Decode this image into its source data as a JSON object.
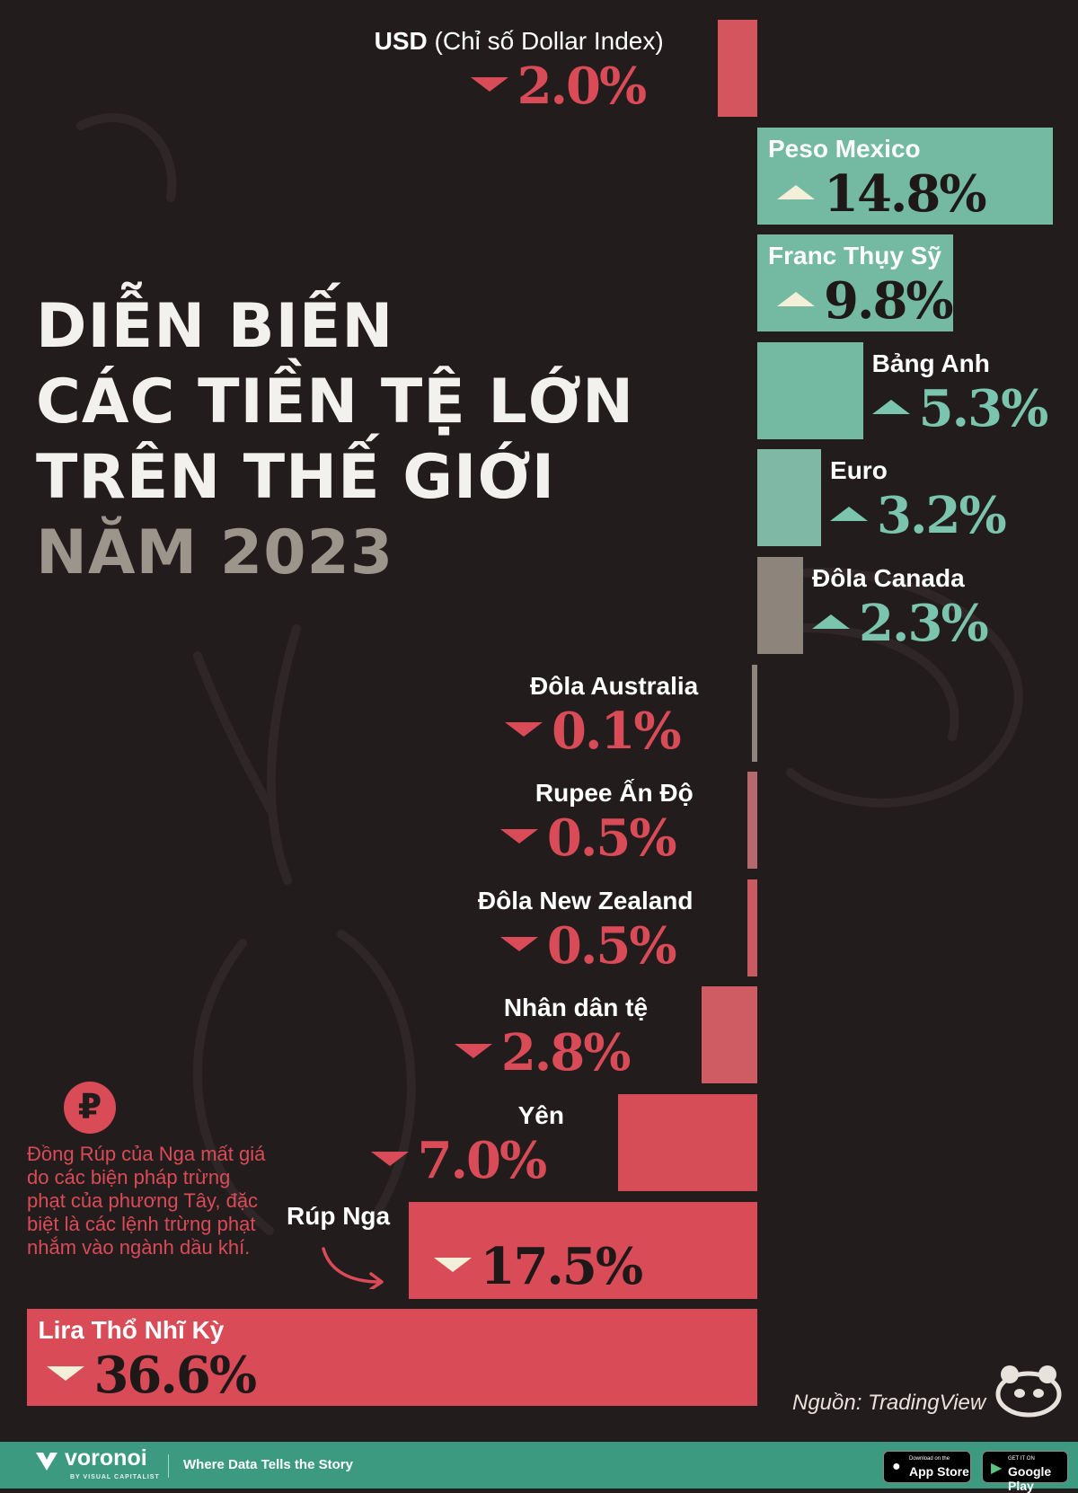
{
  "title": {
    "line1": "DIỄN BIẾN",
    "line2": "CÁC TIỀN TỆ LỚN",
    "line3": "TRÊN THẾ GIỚI",
    "year_line": "NĂM 2023"
  },
  "chart_data": {
    "type": "bar",
    "orientation": "horizontal",
    "baseline": "center",
    "categories": [
      "USD",
      "Peso Mexico",
      "Franc Thụy Sỹ",
      "Bảng Anh",
      "Euro",
      "Đôla Canada",
      "Đôla Australia",
      "Rupee Ấn Độ",
      "Đôla New Zealand",
      "Nhân dân tệ",
      "Yên",
      "Rúp Nga",
      "Lira Thổ Nhĩ Kỳ"
    ],
    "values": [
      -2.0,
      14.8,
      9.8,
      5.3,
      3.2,
      2.3,
      -0.1,
      -0.5,
      -0.5,
      -2.8,
      -7.0,
      -17.5,
      -36.6
    ],
    "label_subtitles": [
      "(Chỉ số Dollar Index)",
      "",
      "",
      "",
      "",
      "",
      "",
      "",
      "",
      "",
      "",
      "",
      ""
    ],
    "value_labels": [
      "2.0%",
      "14.8%",
      "9.8%",
      "5.3%",
      "3.2%",
      "2.3%",
      "0.1%",
      "0.5%",
      "0.5%",
      "2.8%",
      "7.0%",
      "17.5%",
      "36.6%"
    ],
    "unit": "%",
    "colors": {
      "positive": "#7bc4ad",
      "negative": "#d94b57",
      "neutral": "#8d857b"
    }
  },
  "annotation": {
    "icon": "ruble-icon",
    "icon_glyph": "₽",
    "text": "Đồng Rúp của Nga mất giá do các biện pháp trừng phạt của phương Tây, đặc biệt là các lệnh trừng phạt nhắm vào ngành dầu khí."
  },
  "source": "Nguồn: TradingView",
  "footer": {
    "logo": "voronoi",
    "logo_sub": "BY VISUAL CAPITALIST",
    "tagline": "Where Data Tells the Story",
    "app_store_small": "Download on the",
    "app_store": "App Store",
    "google_play_small": "GET IT ON",
    "google_play": "Google Play",
    "background_color": "#3c9a80"
  }
}
